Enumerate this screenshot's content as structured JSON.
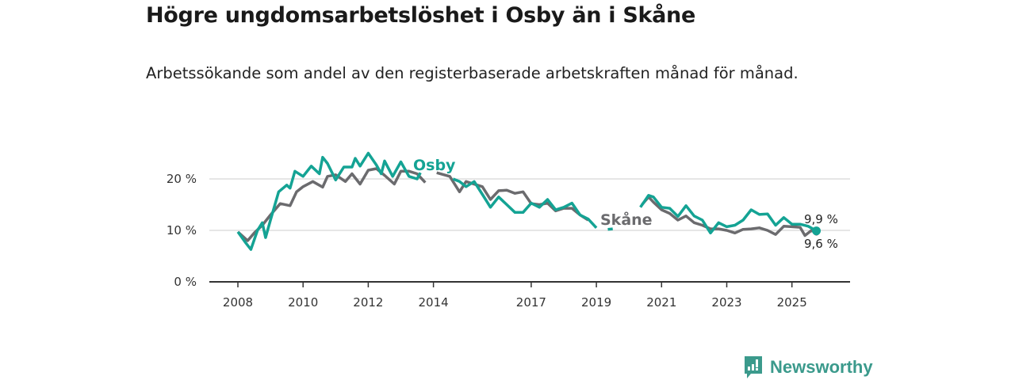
{
  "header": {
    "title": "Högre ungdomsarbetslöshet i Osby än i Skåne",
    "subtitle": "Arbetssökande som andel av den registerbaserade arbetskraften månad för månad."
  },
  "brand": {
    "name": "Newsworthy",
    "color": "#3b9a8c"
  },
  "chart_data": {
    "type": "line",
    "title": "Högre ungdomsarbetslöshet i Osby än i Skåne",
    "xlabel": "",
    "ylabel": "",
    "xlim": [
      2007.1,
      2026.75
    ],
    "ylim": [
      0,
      21
    ],
    "grid": true,
    "x_ticks": [
      {
        "value": 2008,
        "label": "2008"
      },
      {
        "value": 2010,
        "label": "2010"
      },
      {
        "value": 2012,
        "label": "2012"
      },
      {
        "value": 2014,
        "label": "2014"
      },
      {
        "value": 2017,
        "label": "2017"
      },
      {
        "value": 2019,
        "label": "2019"
      },
      {
        "value": 2021,
        "label": "2021"
      },
      {
        "value": 2023,
        "label": "2023"
      },
      {
        "value": 2025,
        "label": "2025"
      }
    ],
    "y_ticks": [
      {
        "value": 0,
        "label": "0 %"
      },
      {
        "value": 10,
        "label": "10 %"
      },
      {
        "value": 20,
        "label": "20 %"
      }
    ],
    "series": [
      {
        "name": "Osby",
        "color": "#14a394",
        "end_label": "9,9 %",
        "points": [
          [
            2008.0,
            9.7
          ],
          [
            2008.25,
            7.5
          ],
          [
            2008.4,
            6.3
          ],
          [
            2008.6,
            10
          ],
          [
            2008.75,
            11.5
          ],
          [
            2008.85,
            8.6
          ],
          [
            2009.0,
            12
          ],
          [
            2009.25,
            17.5
          ],
          [
            2009.5,
            18.8
          ],
          [
            2009.6,
            18.2
          ],
          [
            2009.75,
            21.5
          ],
          [
            2010.0,
            20.5
          ],
          [
            2010.25,
            22.5
          ],
          [
            2010.5,
            21
          ],
          [
            2010.6,
            24.2
          ],
          [
            2010.75,
            23
          ],
          [
            2011.0,
            19.8
          ],
          [
            2011.25,
            22.3
          ],
          [
            2011.5,
            22.3
          ],
          [
            2011.6,
            24
          ],
          [
            2011.75,
            22.5
          ],
          [
            2012.0,
            25
          ],
          [
            2012.25,
            22.7
          ],
          [
            2012.4,
            21
          ],
          [
            2012.5,
            23.5
          ],
          [
            2012.75,
            20.5
          ],
          [
            2013.0,
            23.3
          ],
          [
            2013.25,
            20.5
          ],
          [
            2013.5,
            20
          ],
          [
            2013.6,
            21.2
          ],
          [
            2013.6,
            null
          ],
          [
            2014.6,
            20
          ],
          [
            2014.8,
            19.5
          ],
          [
            2015.0,
            18.5
          ],
          [
            2015.25,
            19.5
          ],
          [
            2015.5,
            17
          ],
          [
            2015.75,
            14.5
          ],
          [
            2016.0,
            16.5
          ],
          [
            2016.25,
            15
          ],
          [
            2016.5,
            13.5
          ],
          [
            2016.75,
            13.5
          ],
          [
            2017.0,
            15.3
          ],
          [
            2017.25,
            14.5
          ],
          [
            2017.5,
            16
          ],
          [
            2017.75,
            14
          ],
          [
            2018.0,
            14.5
          ],
          [
            2018.25,
            15.3
          ],
          [
            2018.5,
            13
          ],
          [
            2018.75,
            12.2
          ],
          [
            2019.0,
            10.5
          ],
          [
            2019.0,
            null
          ],
          [
            2019.35,
            10.2
          ],
          [
            2019.5,
            10.3
          ],
          [
            2019.5,
            null
          ],
          [
            2020.35,
            14.5
          ],
          [
            2020.6,
            16.8
          ],
          [
            2020.75,
            16.5
          ],
          [
            2021.0,
            14.5
          ],
          [
            2021.25,
            14.3
          ],
          [
            2021.5,
            12.7
          ],
          [
            2021.75,
            14.8
          ],
          [
            2022.0,
            12.8
          ],
          [
            2022.25,
            12
          ],
          [
            2022.5,
            9.5
          ],
          [
            2022.75,
            11.5
          ],
          [
            2023.0,
            10.7
          ],
          [
            2023.25,
            11
          ],
          [
            2023.5,
            12
          ],
          [
            2023.75,
            14
          ],
          [
            2024.0,
            13.1
          ],
          [
            2024.25,
            13.2
          ],
          [
            2024.5,
            11
          ],
          [
            2024.75,
            12.5
          ],
          [
            2025.0,
            11.2
          ],
          [
            2025.25,
            11.2
          ],
          [
            2025.5,
            10.8
          ],
          [
            2025.75,
            9.9
          ]
        ]
      },
      {
        "name": "Skåne",
        "color": "#6b6b6e",
        "end_label": "9,6 %",
        "points": [
          [
            2008.0,
            9.7
          ],
          [
            2008.3,
            8
          ],
          [
            2008.5,
            9.5
          ],
          [
            2008.75,
            11
          ],
          [
            2009.0,
            13
          ],
          [
            2009.3,
            15.2
          ],
          [
            2009.6,
            14.8
          ],
          [
            2009.8,
            17.5
          ],
          [
            2010.0,
            18.5
          ],
          [
            2010.3,
            19.5
          ],
          [
            2010.6,
            18.4
          ],
          [
            2010.75,
            20.5
          ],
          [
            2011.0,
            20.8
          ],
          [
            2011.3,
            19.5
          ],
          [
            2011.5,
            21
          ],
          [
            2011.75,
            19
          ],
          [
            2012.0,
            21.7
          ],
          [
            2012.25,
            22
          ],
          [
            2012.5,
            20.7
          ],
          [
            2012.8,
            19
          ],
          [
            2013.0,
            21.5
          ],
          [
            2013.25,
            21.5
          ],
          [
            2013.5,
            21
          ],
          [
            2013.75,
            19.3
          ],
          [
            2013.75,
            null
          ],
          [
            2014.1,
            21.2
          ],
          [
            2014.5,
            20.5
          ],
          [
            2014.8,
            17.5
          ],
          [
            2015.0,
            19.5
          ],
          [
            2015.5,
            18.5
          ],
          [
            2015.75,
            16
          ],
          [
            2016.0,
            17.7
          ],
          [
            2016.25,
            17.8
          ],
          [
            2016.5,
            17.2
          ],
          [
            2016.75,
            17.5
          ],
          [
            2017.0,
            15.2
          ],
          [
            2017.25,
            15
          ],
          [
            2017.5,
            15.3
          ],
          [
            2017.75,
            13.8
          ],
          [
            2018.0,
            14.3
          ],
          [
            2018.25,
            14.3
          ],
          [
            2018.5,
            13
          ],
          [
            2018.75,
            12
          ],
          [
            2018.75,
            null
          ],
          [
            2020.4,
            15
          ],
          [
            2020.6,
            16.5
          ],
          [
            2020.75,
            15.5
          ],
          [
            2021.0,
            14
          ],
          [
            2021.25,
            13.3
          ],
          [
            2021.5,
            12
          ],
          [
            2021.75,
            12.8
          ],
          [
            2022.0,
            11.5
          ],
          [
            2022.25,
            11
          ],
          [
            2022.5,
            10.3
          ],
          [
            2022.75,
            10.3
          ],
          [
            2023.0,
            10
          ],
          [
            2023.25,
            9.5
          ],
          [
            2023.5,
            10.2
          ],
          [
            2023.75,
            10.3
          ],
          [
            2024.0,
            10.5
          ],
          [
            2024.25,
            10
          ],
          [
            2024.5,
            9.2
          ],
          [
            2024.75,
            10.8
          ],
          [
            2025.0,
            10.7
          ],
          [
            2025.25,
            10.6
          ],
          [
            2025.4,
            9
          ],
          [
            2025.6,
            10
          ],
          [
            2025.75,
            9.6
          ]
        ]
      }
    ]
  }
}
